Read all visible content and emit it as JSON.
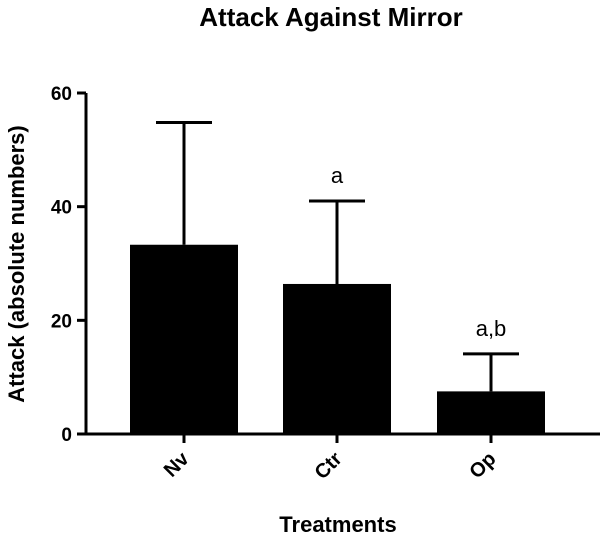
{
  "chart_data": {
    "type": "bar",
    "title": "Attack Against Mirror",
    "xlabel": "Treatments",
    "ylabel": "Attack (absolute numbers)",
    "ylim": [
      0,
      60
    ],
    "yticks": [
      0,
      20,
      40,
      60
    ],
    "categories": [
      "Nv",
      "Ctr",
      "Op"
    ],
    "values": [
      33.3,
      26.4,
      7.5
    ],
    "error_upper": [
      54.8,
      41.0,
      14.1
    ],
    "annotations": [
      "",
      "a",
      "a,b"
    ],
    "bar_color": "#000000",
    "grid": false,
    "legend": "none"
  }
}
